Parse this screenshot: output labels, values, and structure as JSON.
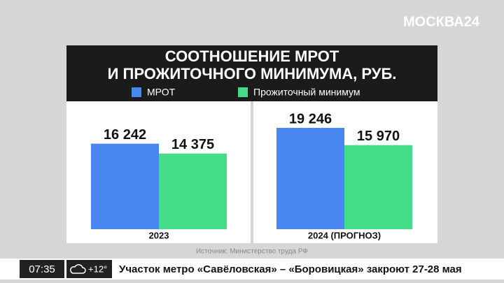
{
  "logo": "МОСКВА24",
  "chart_data": {
    "type": "bar",
    "title": "СООТНОШЕНИЕ МРОТ\nИ ПРОЖИТОЧНОГО МИНИМУМА, РУБ.",
    "categories": [
      "2023",
      "2024 (ПРОГНОЗ)"
    ],
    "series": [
      {
        "name": "МРОТ",
        "color": "#4a86f0",
        "values": [
          16242,
          19246
        ],
        "value_labels": [
          "16 242",
          "19 246"
        ]
      },
      {
        "name": "Прожиточный минимум",
        "color": "#45dc87",
        "values": [
          14375,
          15970
        ],
        "value_labels": [
          "14 375",
          "15 970"
        ]
      }
    ],
    "source": "Источник: Министерство труда РФ"
  },
  "ticker": {
    "time": "07:35",
    "weather": "+12°",
    "headline": "Участок метро «Савёловская» – «Боровицкая» закроют 27-28 мая"
  }
}
